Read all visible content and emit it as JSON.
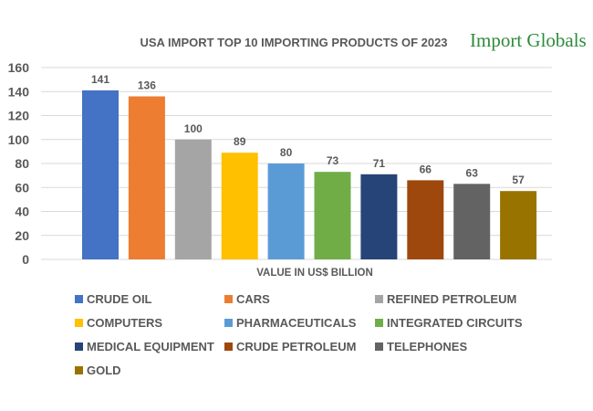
{
  "logo": {
    "text": "Import Globals"
  },
  "chart_data": {
    "type": "bar",
    "title": "USA IMPORT TOP 10 IMPORTING PRODUCTS OF 2023",
    "xlabel": "VALUE IN US$ BILLION",
    "ylabel": "",
    "ylim": [
      0,
      160
    ],
    "yticks": [
      0,
      20,
      40,
      60,
      80,
      100,
      120,
      140,
      160
    ],
    "grid": true,
    "legend": "bottom",
    "categories": [
      "CRUDE OIL",
      "CARS",
      "REFINED PETROLEUM",
      "COMPUTERS",
      "PHARMACEUTICALS",
      "INTEGRATED CIRCUITS",
      "MEDICAL EQUIPMENT",
      "CRUDE PETROLEUM",
      "TELEPHONES",
      "GOLD"
    ],
    "values": [
      141,
      136,
      100,
      89,
      80,
      73,
      71,
      66,
      63,
      57
    ],
    "colors": [
      "#4472c4",
      "#ed7d31",
      "#a5a5a5",
      "#ffc000",
      "#5b9bd5",
      "#70ad47",
      "#264478",
      "#9e480e",
      "#636363",
      "#997300"
    ]
  }
}
